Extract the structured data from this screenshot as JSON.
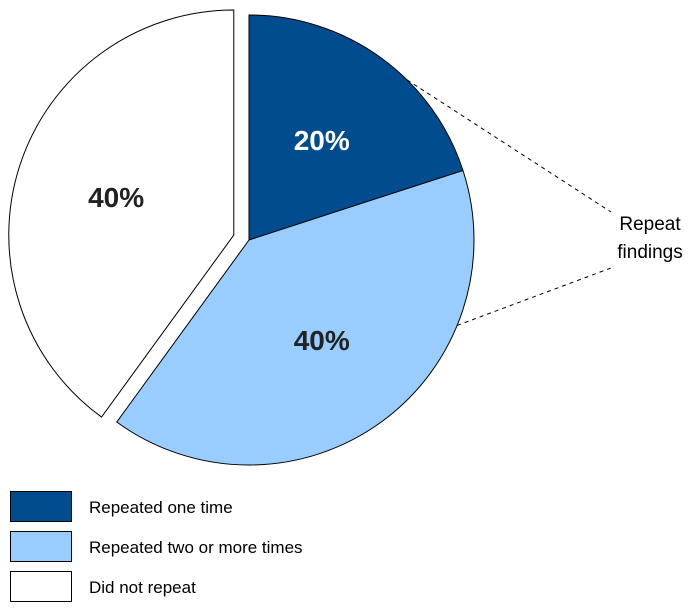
{
  "chart_data": {
    "type": "pie",
    "title": "",
    "slices": [
      {
        "label": "Repeated one time",
        "value": 20,
        "display": "20%",
        "color": "#004c8f",
        "text_color": "#ffffff"
      },
      {
        "label": "Repeated two or more times",
        "value": 40,
        "display": "40%",
        "color": "#99ccff",
        "text_color": "#222222"
      },
      {
        "label": "Did not repeat",
        "value": 40,
        "display": "40%",
        "color": "#ffffff",
        "text_color": "#222222",
        "exploded": true
      }
    ],
    "annotation": {
      "line1": "Repeat",
      "line2": "findings"
    },
    "legend_position": "bottom-left"
  }
}
